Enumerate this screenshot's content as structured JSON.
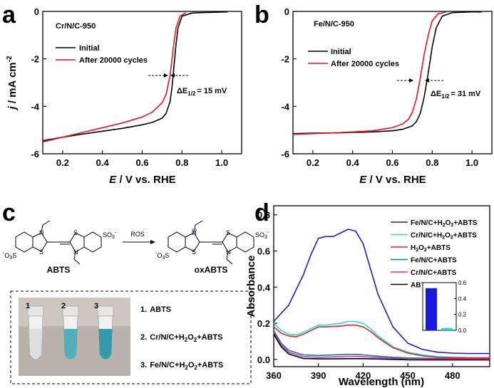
{
  "panels": {
    "a": "a",
    "b": "b",
    "c": "c",
    "d": "d"
  },
  "chart_data": [
    {
      "type": "line",
      "panel": "a",
      "label": "Cr/N/C-950",
      "xlabel_italic": "E",
      "xlabel_rest": " / V vs. RHE",
      "ylabel_italic": "j",
      "ylabel_rest": " / mA cm",
      "ylabel_sup": "-2",
      "xlim": [
        0.1,
        1.1
      ],
      "ylim": [
        -6,
        0
      ],
      "xticks": [
        "0.2",
        "0.4",
        "0.6",
        "0.8",
        "1.0"
      ],
      "yticks": [
        "0",
        "-2",
        "-4",
        "-6"
      ],
      "annotation_delta": "ΔE",
      "annotation_sub": "1/2",
      "annotation_value": "= 15 mV",
      "series": [
        {
          "name": "Initial",
          "color": "#000000",
          "x": [
            0.1,
            0.2,
            0.3,
            0.4,
            0.5,
            0.6,
            0.65,
            0.7,
            0.72,
            0.74,
            0.75,
            0.76,
            0.77,
            0.78,
            0.8,
            0.85,
            0.9,
            1.0,
            1.03
          ],
          "y": [
            -5.45,
            -5.3,
            -5.17,
            -5.05,
            -4.93,
            -4.78,
            -4.68,
            -4.5,
            -4.3,
            -3.8,
            -3.2,
            -2.3,
            -1.4,
            -0.7,
            -0.2,
            -0.07,
            -0.05,
            -0.03,
            -0.02
          ]
        },
        {
          "name": "After 20000 cycles",
          "color": "#e8131b",
          "x": [
            0.1,
            0.2,
            0.3,
            0.4,
            0.5,
            0.6,
            0.65,
            0.7,
            0.72,
            0.74,
            0.75,
            0.76,
            0.77,
            0.79,
            0.82
          ],
          "y": [
            -5.5,
            -5.3,
            -5.1,
            -4.9,
            -4.7,
            -4.45,
            -4.25,
            -3.85,
            -3.5,
            -2.7,
            -2.0,
            -1.3,
            -0.7,
            -0.2,
            -0.05
          ]
        }
      ]
    },
    {
      "type": "line",
      "panel": "b",
      "label": "Fe/N/C-950",
      "xlabel_italic": "E",
      "xlabel_rest": " / V vs. RHE",
      "xlim": [
        0.1,
        1.1
      ],
      "ylim": [
        -6,
        0
      ],
      "xticks": [
        "0.2",
        "0.4",
        "0.6",
        "0.8",
        "1.0"
      ],
      "yticks": [
        "0",
        "-2",
        "-4",
        "-6"
      ],
      "annotation_delta": "ΔE",
      "annotation_sub": "1/2",
      "annotation_value": "= 31 mV",
      "series": [
        {
          "name": "Initial",
          "color": "#000000",
          "x": [
            0.1,
            0.2,
            0.3,
            0.4,
            0.5,
            0.6,
            0.65,
            0.7,
            0.72,
            0.74,
            0.76,
            0.78,
            0.8,
            0.82,
            0.85,
            0.9,
            1.0,
            1.05
          ],
          "y": [
            -5.15,
            -5.13,
            -5.12,
            -5.1,
            -5.08,
            -5.03,
            -4.97,
            -4.82,
            -4.65,
            -4.3,
            -3.6,
            -2.6,
            -1.5,
            -0.7,
            -0.2,
            -0.05,
            -0.02,
            -0.02
          ]
        },
        {
          "name": "After 20000 cycles",
          "color": "#e8131b",
          "x": [
            0.1,
            0.2,
            0.3,
            0.4,
            0.5,
            0.6,
            0.65,
            0.68,
            0.7,
            0.72,
            0.74,
            0.76,
            0.78,
            0.8,
            0.83,
            0.87
          ],
          "y": [
            -5.18,
            -5.15,
            -5.12,
            -5.08,
            -5.03,
            -4.9,
            -4.75,
            -4.55,
            -4.25,
            -3.7,
            -2.8,
            -1.8,
            -1.0,
            -0.4,
            -0.1,
            -0.03
          ]
        }
      ]
    },
    {
      "type": "line",
      "panel": "d",
      "xlabel": "Wavelength (nm)",
      "ylabel": "Absorbance",
      "xlim": [
        360,
        505
      ],
      "ylim": [
        -0.04,
        0.85
      ],
      "xticks": [
        "360",
        "390",
        "420",
        "450",
        "480"
      ],
      "yticks": [
        "0.0",
        "0.2",
        "0.4",
        "0.6",
        "0.8"
      ],
      "legend_position": "top-right",
      "series": [
        {
          "name_parts": [
            "Fe/N/C+H",
            "2",
            "O",
            "2",
            "+ABTS"
          ],
          "color": "#1a1adc",
          "x": [
            360,
            370,
            380,
            385,
            390,
            395,
            400,
            405,
            410,
            415,
            420,
            425,
            430,
            440,
            450,
            460,
            470,
            480,
            490,
            500,
            505
          ],
          "y": [
            0.21,
            0.3,
            0.47,
            0.58,
            0.67,
            0.68,
            0.68,
            0.7,
            0.72,
            0.71,
            0.64,
            0.5,
            0.36,
            0.18,
            0.09,
            0.055,
            0.04,
            0.035,
            0.033,
            0.033,
            0.033
          ]
        },
        {
          "name_parts": [
            "Cr/N/C+H",
            "2",
            "O",
            "2",
            "+ABTS"
          ],
          "color": "#19dede",
          "x": [
            360,
            365,
            370,
            375,
            380,
            385,
            390,
            395,
            400,
            405,
            410,
            415,
            420,
            425,
            430,
            440,
            450,
            460,
            470,
            480,
            490,
            500,
            505
          ],
          "y": [
            0.2,
            0.16,
            0.14,
            0.135,
            0.15,
            0.17,
            0.19,
            0.19,
            0.195,
            0.2,
            0.21,
            0.21,
            0.2,
            0.17,
            0.13,
            0.07,
            0.04,
            0.025,
            0.015,
            0.012,
            0.01,
            0.01,
            0.01
          ]
        },
        {
          "name_parts": [
            "H",
            "2",
            "O",
            "2",
            "+ABTS"
          ],
          "color": "#e2232a",
          "x": [
            360,
            365,
            370,
            375,
            380,
            385,
            390,
            395,
            400,
            405,
            410,
            415,
            420,
            425,
            430,
            440,
            450,
            460,
            470,
            480,
            490,
            500,
            505
          ],
          "y": [
            0.18,
            0.145,
            0.13,
            0.125,
            0.14,
            0.16,
            0.18,
            0.18,
            0.182,
            0.185,
            0.19,
            0.19,
            0.18,
            0.155,
            0.12,
            0.065,
            0.035,
            0.02,
            0.012,
            0.01,
            0.008,
            0.008,
            0.008
          ]
        },
        {
          "name_parts": [
            "Fe/N/C+ABTS"
          ],
          "color": "#127b7b",
          "x": [
            360,
            365,
            370,
            380,
            390,
            400,
            410,
            415,
            420,
            430,
            440,
            450,
            470,
            490,
            505
          ],
          "y": [
            0.16,
            0.09,
            0.05,
            0.025,
            0.022,
            0.025,
            0.028,
            0.028,
            0.025,
            0.018,
            0.012,
            0.008,
            0.005,
            0.004,
            0.004
          ]
        },
        {
          "name_parts": [
            "Cr/N/C+ABTS"
          ],
          "color": "#d128d1",
          "x": [
            360,
            365,
            370,
            380,
            390,
            400,
            410,
            415,
            420,
            430,
            440,
            450,
            470,
            490,
            505
          ],
          "y": [
            0.15,
            0.08,
            0.04,
            0.015,
            0.012,
            0.014,
            0.017,
            0.017,
            0.015,
            0.01,
            0.006,
            0.004,
            0.002,
            0.002,
            0.002
          ]
        },
        {
          "name_parts": [
            "ABTS"
          ],
          "color": "#000000",
          "x": [
            360,
            365,
            370,
            380,
            390,
            400,
            410,
            420,
            430,
            440,
            450,
            470,
            490,
            505
          ],
          "y": [
            0.14,
            0.07,
            0.03,
            0.005,
            0.003,
            0.003,
            0.004,
            0.004,
            0.002,
            0.0,
            -0.002,
            -0.003,
            -0.003,
            -0.003
          ]
        }
      ],
      "inset": {
        "type": "bar",
        "ylim": [
          0,
          0.6
        ],
        "yticks": [
          "0.6",
          "0.4",
          "0.2",
          "0.0"
        ],
        "values": [
          0.53,
          0.03
        ],
        "colors": [
          "#1a1adc",
          "#19dede"
        ]
      }
    }
  ],
  "scheme": {
    "reagent": "ABTS",
    "product": "oxABTS",
    "arrow_label": "ROS",
    "tube_numbers": [
      "1",
      "2",
      "3"
    ],
    "tube_colors": [
      "#dcdcdc",
      "#3fa7b5",
      "#1e8fa3"
    ],
    "legend_items": [
      {
        "num": "1.",
        "parts": [
          "ABTS"
        ]
      },
      {
        "num": "2.",
        "parts": [
          "Cr/N/C+H",
          "2",
          "O",
          "2",
          "+ABTS"
        ]
      },
      {
        "num": "3.",
        "parts": [
          "Fe/N/C+H",
          "2",
          "O",
          "2",
          "+ABTS"
        ]
      }
    ],
    "chem_so3": "SO",
    "chem_n": "N",
    "chem_s": "S",
    "chem_minus": "-"
  }
}
